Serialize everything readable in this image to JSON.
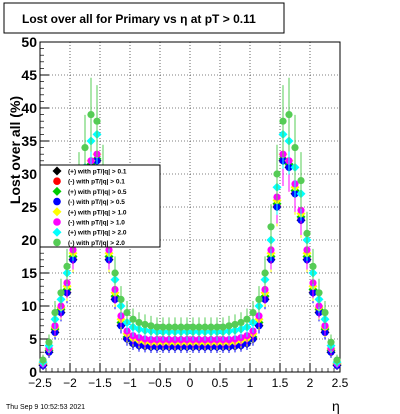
{
  "chart_data": {
    "type": "scatter",
    "title": "Lost over all for Primary vs    η at pT > 0.11",
    "xlabel": "η",
    "ylabel": "Lost over all (%)",
    "xlim": [
      -2.5,
      2.5
    ],
    "ylim": [
      0,
      50
    ],
    "x_ticks": [
      "−2.5",
      "−2",
      "−1.5",
      "−1",
      "−0.5",
      "0",
      "0.5",
      "1",
      "1.5",
      "2",
      "2.5"
    ],
    "y_ticks": [
      "0",
      "5",
      "10",
      "15",
      "20",
      "25",
      "30",
      "35",
      "40",
      "45",
      "50"
    ],
    "grid": true,
    "legend_position": "left-middle",
    "eta_bins": [
      -2.45,
      -2.35,
      -2.25,
      -2.15,
      -2.05,
      -1.95,
      -1.85,
      -1.75,
      -1.65,
      -1.55,
      -1.45,
      -1.35,
      -1.25,
      -1.15,
      -1.05,
      -0.95,
      -0.85,
      -0.75,
      -0.65,
      -0.55,
      -0.45,
      -0.35,
      -0.25,
      -0.15,
      -0.05,
      0.05,
      0.15,
      0.25,
      0.35,
      0.45,
      0.55,
      0.65,
      0.75,
      0.85,
      0.95,
      1.05,
      1.15,
      1.25,
      1.35,
      1.45,
      1.55,
      1.65,
      1.75,
      1.85,
      1.95,
      2.05,
      2.15,
      2.25,
      2.35,
      2.45
    ],
    "series": [
      {
        "name": "(+) with pT/|q| > 0.1",
        "color": "#000000",
        "values": [
          1,
          3,
          6,
          9,
          12,
          17,
          23,
          27,
          31,
          32,
          25,
          17,
          11,
          7,
          5,
          4.3,
          4,
          3.9,
          3.8,
          3.8,
          3.8,
          3.8,
          3.8,
          3.8,
          3.8,
          3.8,
          3.8,
          3.8,
          3.8,
          3.8,
          3.8,
          3.8,
          3.9,
          4,
          4.3,
          5,
          7,
          11,
          17,
          25,
          32,
          31,
          27,
          23,
          17,
          12,
          9,
          6,
          3,
          1
        ]
      },
      {
        "name": "(-) with pT/|q| > 0.1",
        "color": "#ff0000",
        "values": [
          1.1,
          3.1,
          6.2,
          9.2,
          12.2,
          17.2,
          23.2,
          27.2,
          31.2,
          32.1,
          25.2,
          17.2,
          11.2,
          7.2,
          5.1,
          4.4,
          4.1,
          4,
          3.9,
          3.9,
          3.9,
          3.9,
          3.9,
          3.9,
          3.9,
          3.9,
          3.9,
          3.9,
          3.9,
          3.9,
          3.9,
          3.9,
          4,
          4.1,
          4.4,
          5.1,
          7.2,
          11.2,
          17.2,
          25.2,
          32.1,
          31.2,
          27.2,
          23.2,
          17.2,
          12.2,
          9.2,
          6.2,
          3.1,
          1.1
        ]
      },
      {
        "name": "(+) with pT/|q| > 0.5",
        "color": "#00cc00",
        "values": [
          1.2,
          3.3,
          6.5,
          9.5,
          12.5,
          17.5,
          23.5,
          27.5,
          31.5,
          32.3,
          25.5,
          17.5,
          11.5,
          7.5,
          5.3,
          4.6,
          4.3,
          4.2,
          4.1,
          4.1,
          4.1,
          4.1,
          4.1,
          4.1,
          4.1,
          4.1,
          4.1,
          4.1,
          4.1,
          4.1,
          4.1,
          4.1,
          4.2,
          4.3,
          4.6,
          5.3,
          7.5,
          11.5,
          17.5,
          25.5,
          32.3,
          31.5,
          27.5,
          23.5,
          17.5,
          12.5,
          9.5,
          6.5,
          3.3,
          1.2
        ]
      },
      {
        "name": "(-) with pT/|q| > 0.5",
        "color": "#0000ff",
        "values": [
          1,
          3,
          6,
          9,
          12,
          17,
          23,
          27,
          31,
          32,
          25,
          17,
          11,
          7,
          5,
          4.3,
          4,
          3.9,
          3.8,
          3.8,
          3.8,
          3.8,
          3.8,
          3.8,
          3.8,
          3.8,
          3.8,
          3.8,
          3.8,
          3.8,
          3.8,
          3.8,
          3.9,
          4,
          4.3,
          5,
          7,
          11,
          17,
          25,
          32,
          31,
          27,
          23,
          17,
          12,
          9,
          6,
          3,
          1
        ]
      },
      {
        "name": "(+) with pT/|q| > 1.0",
        "color": "#ffff00",
        "values": [
          1.3,
          3.5,
          6.8,
          9.8,
          13,
          18,
          24,
          28,
          32,
          33,
          26,
          18,
          12,
          8,
          5.8,
          5.1,
          4.8,
          4.6,
          4.5,
          4.5,
          4.5,
          4.5,
          4.5,
          4.5,
          4.5,
          4.5,
          4.5,
          4.5,
          4.5,
          4.5,
          4.5,
          4.5,
          4.6,
          4.8,
          5.1,
          5.8,
          8,
          12,
          18,
          26,
          33,
          32,
          28,
          24,
          18,
          13,
          9.8,
          6.8,
          3.5,
          1.3
        ]
      },
      {
        "name": "(-) with pT/|q| > 1.0",
        "color": "#ff00ff",
        "values": [
          1.3,
          3.6,
          7,
          10,
          13.5,
          18.5,
          24.5,
          28.5,
          32,
          33,
          26.5,
          18.5,
          12.5,
          8.5,
          6.2,
          5.5,
          5.2,
          5,
          4.9,
          4.9,
          4.9,
          4.9,
          4.9,
          4.9,
          4.9,
          4.9,
          4.9,
          4.9,
          4.9,
          4.9,
          4.9,
          4.9,
          5,
          5.2,
          5.5,
          6.2,
          8.5,
          12.5,
          18.5,
          26.5,
          33,
          32,
          28.5,
          24.5,
          18.5,
          13.5,
          10,
          7,
          3.6,
          1.3
        ]
      },
      {
        "name": "(+) with pT/|q| > 2.0",
        "color": "#00ffff",
        "values": [
          1.5,
          4,
          8,
          11,
          15,
          20,
          27,
          31,
          35,
          36,
          28,
          20,
          14,
          10,
          7.5,
          6.8,
          6.5,
          6.3,
          6.2,
          6.1,
          6.1,
          6.1,
          6.1,
          6.1,
          6.1,
          6.1,
          6.1,
          6.1,
          6.1,
          6.1,
          6.1,
          6.2,
          6.3,
          6.5,
          6.8,
          7.5,
          10,
          14,
          20,
          28,
          36,
          35,
          31,
          27,
          20,
          15,
          11,
          8,
          4,
          1.5
        ]
      },
      {
        "name": "(-) with pT/|q| > 2.0",
        "color": "#55cc55",
        "values": [
          1.8,
          4.5,
          9,
          12,
          16,
          21,
          29,
          34,
          39,
          38,
          30,
          22,
          15,
          11,
          9,
          8,
          7.5,
          7.2,
          7,
          6.8,
          6.8,
          6.8,
          6.8,
          6.8,
          6.8,
          6.8,
          6.8,
          6.8,
          6.8,
          6.8,
          6.8,
          7,
          7.2,
          7.5,
          8,
          9,
          11,
          15,
          22,
          30,
          38,
          39,
          34,
          29,
          21,
          16,
          12,
          9,
          4.5,
          1.8
        ]
      }
    ]
  },
  "footer": {
    "timestamp": "Thu Sep  9 10:52:53 2021",
    "x_axis_symbol": "η"
  }
}
